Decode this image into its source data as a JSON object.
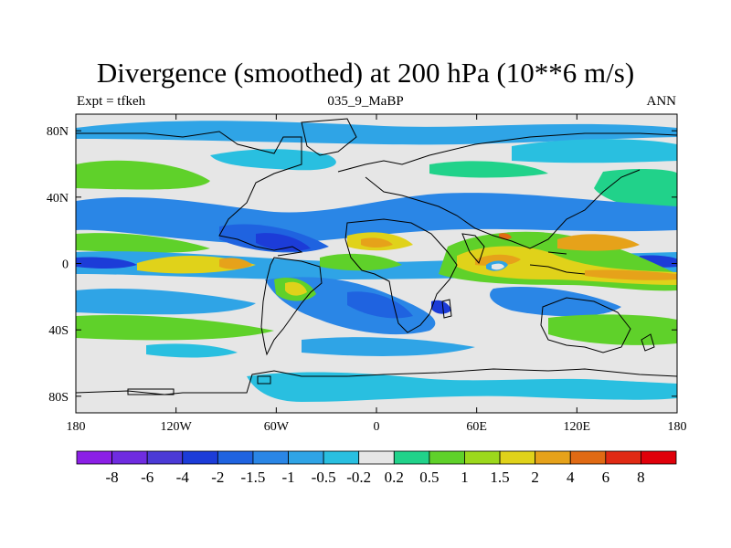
{
  "title": "Divergence (smoothed) at 200 hPa (10**6 m/s)",
  "subtitle_left": "Expt = tfkeh",
  "subtitle_center": "035_9_MaBP",
  "subtitle_right": "ANN",
  "colors": {
    "background_land_ocean_neutral": "#e6e6e6",
    "coastline": "#000000"
  },
  "chart_data": {
    "type": "heatmap",
    "map_projection": "cylindrical equidistant",
    "lon_range": [
      -180,
      180
    ],
    "lat_range": [
      -90,
      90
    ],
    "x_ticks": [
      {
        "value": -180,
        "label": "180"
      },
      {
        "value": -120,
        "label": "120W"
      },
      {
        "value": -60,
        "label": "60W"
      },
      {
        "value": 0,
        "label": "0"
      },
      {
        "value": 60,
        "label": "60E"
      },
      {
        "value": 120,
        "label": "120E"
      },
      {
        "value": 180,
        "label": "180"
      }
    ],
    "y_ticks": [
      {
        "value": 80,
        "label": "80N"
      },
      {
        "value": 40,
        "label": "40N"
      },
      {
        "value": 0,
        "label": "0"
      },
      {
        "value": -40,
        "label": "40S"
      },
      {
        "value": -80,
        "label": "80S"
      }
    ],
    "colorbar": {
      "levels": [
        "-8",
        "-6",
        "-4",
        "-2",
        "-1.5",
        "-1",
        "-0.5",
        "-0.2",
        "0.2",
        "0.5",
        "1",
        "1.5",
        "2",
        "4",
        "6",
        "8"
      ],
      "colors": [
        "#8b1fe6",
        "#6f2ce0",
        "#4b3ad6",
        "#1c3cd8",
        "#1f63e0",
        "#2a86e6",
        "#2fa4e6",
        "#29bfe0",
        "#e6e6e6",
        "#21d28a",
        "#5fd12a",
        "#9cd81c",
        "#e0d21a",
        "#e6a21a",
        "#e06a14",
        "#e02a14",
        "#e0000a"
      ]
    },
    "features": [
      {
        "lon": 0,
        "lat": 0,
        "description_value": 2
      },
      {
        "lon": 80,
        "lat": 12,
        "description_value": 4
      }
    ]
  }
}
